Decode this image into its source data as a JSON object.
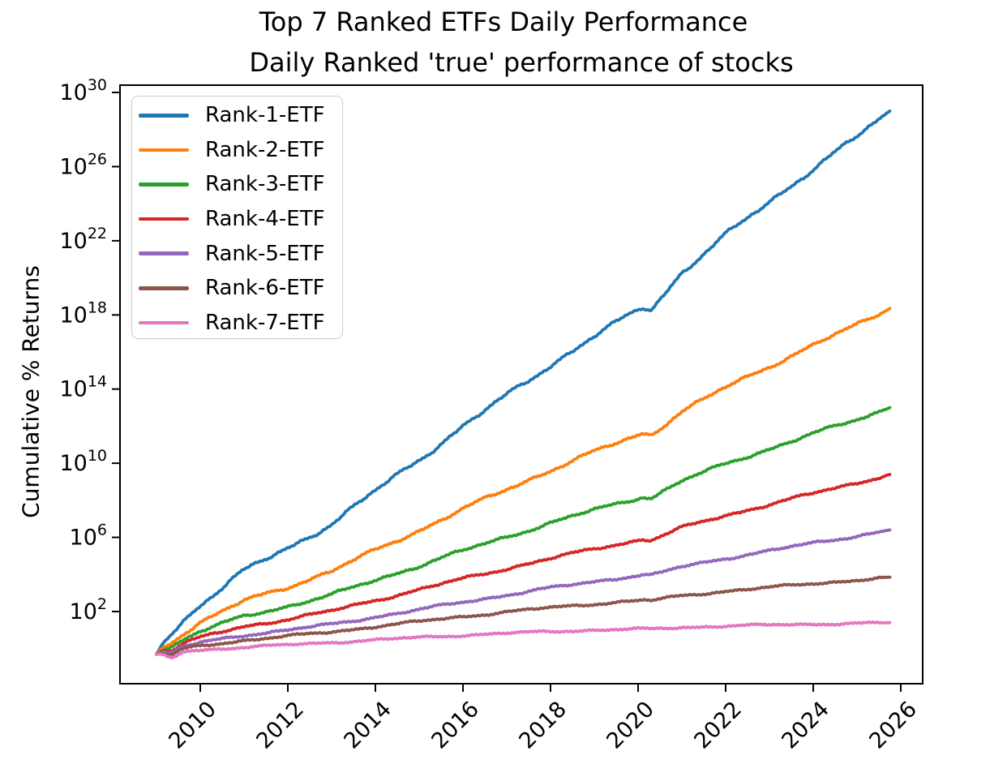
{
  "figure": {
    "suptitle": "Top 7 Ranked ETFs Daily Performance",
    "axes_title": "Daily Ranked 'true' performance of stocks",
    "ylabel": "Cumulative % Returns"
  },
  "chart_data": {
    "type": "line",
    "title": "Top 7 Ranked ETFs Daily Performance",
    "subtitle": "Daily Ranked 'true' performance of stocks",
    "xlabel": "",
    "ylabel": "Cumulative % Returns",
    "grid": false,
    "x_axis": {
      "kind": "years",
      "tick_values": [
        2010,
        2012,
        2014,
        2016,
        2018,
        2020,
        2022,
        2024,
        2026
      ],
      "tick_labels": [
        "2010",
        "2012",
        "2014",
        "2016",
        "2018",
        "2020",
        "2022",
        "2024",
        "2026"
      ],
      "tick_rotation_deg": 45,
      "axis_range": [
        2008.17,
        2026.5
      ],
      "data_range": [
        2009.0,
        2025.75
      ]
    },
    "y_axis": {
      "scale": "log10",
      "log_base_label": "10",
      "tick_exponents": [
        2,
        6,
        10,
        14,
        18,
        22,
        26,
        30
      ],
      "axis_range_exponents": [
        -1.9,
        30.4
      ],
      "label": "Cumulative % Returns"
    },
    "legend": {
      "location": "upper left",
      "entries": [
        "Rank-1-ETF",
        "Rank-2-ETF",
        "Rank-3-ETF",
        "Rank-4-ETF",
        "Rank-5-ETF",
        "Rank-6-ETF",
        "Rank-7-ETF"
      ]
    },
    "series": [
      {
        "name": "Rank-1-ETF",
        "color": "#1f77b4",
        "points_year_log10": [
          [
            2009,
            -0.3
          ],
          [
            2009.15,
            0.3
          ],
          [
            2009.5,
            1.2
          ],
          [
            2010,
            2.4
          ],
          [
            2011,
            4.2
          ],
          [
            2012,
            5.4
          ],
          [
            2013,
            6.75
          ],
          [
            2014,
            8.5
          ],
          [
            2015,
            10.2
          ],
          [
            2016,
            12.0
          ],
          [
            2017,
            13.65
          ],
          [
            2018,
            15.3
          ],
          [
            2019,
            16.85
          ],
          [
            2020.1,
            18.4
          ],
          [
            2020.3,
            18.3
          ],
          [
            2021,
            20.3
          ],
          [
            2022,
            22.3
          ],
          [
            2023,
            24.1
          ],
          [
            2024,
            25.9
          ],
          [
            2025,
            27.6
          ],
          [
            2025.75,
            29.0
          ]
        ]
      },
      {
        "name": "Rank-2-ETF",
        "color": "#ff7f0e",
        "points_year_log10": [
          [
            2009,
            -0.3
          ],
          [
            2009.15,
            0.08
          ],
          [
            2009.5,
            0.66
          ],
          [
            2010,
            1.42
          ],
          [
            2011,
            2.57
          ],
          [
            2012,
            3.33
          ],
          [
            2013,
            4.19
          ],
          [
            2014,
            5.3
          ],
          [
            2015,
            6.38
          ],
          [
            2016,
            7.53
          ],
          [
            2017,
            8.58
          ],
          [
            2018,
            9.63
          ],
          [
            2019,
            10.62
          ],
          [
            2020.1,
            11.6
          ],
          [
            2020.3,
            11.54
          ],
          [
            2021,
            12.81
          ],
          [
            2022,
            14.08
          ],
          [
            2023,
            15.23
          ],
          [
            2024,
            16.38
          ],
          [
            2025,
            17.46
          ],
          [
            2025.75,
            18.35
          ]
        ]
      },
      {
        "name": "Rank-3-ETF",
        "color": "#2ca02c",
        "points_year_log10": [
          [
            2009,
            -0.3
          ],
          [
            2009.15,
            -0.03
          ],
          [
            2009.5,
            0.38
          ],
          [
            2010,
            0.93
          ],
          [
            2011,
            1.74
          ],
          [
            2012,
            2.29
          ],
          [
            2013,
            2.9
          ],
          [
            2014,
            3.69
          ],
          [
            2015,
            4.47
          ],
          [
            2016,
            5.28
          ],
          [
            2017,
            6.03
          ],
          [
            2018,
            6.78
          ],
          [
            2019,
            7.48
          ],
          [
            2020.1,
            8.19
          ],
          [
            2020.3,
            8.14
          ],
          [
            2021,
            9.05
          ],
          [
            2022,
            9.96
          ],
          [
            2023,
            10.78
          ],
          [
            2024,
            11.59
          ],
          [
            2025,
            12.36
          ],
          [
            2025.75,
            13.0
          ]
        ]
      },
      {
        "name": "Rank-4-ETF",
        "color": "#d62728",
        "points_year_log10": [
          [
            2009,
            -0.3
          ],
          [
            2009.15,
            -0.1
          ],
          [
            2009.5,
            0.2
          ],
          [
            2010,
            0.59
          ],
          [
            2011,
            1.19
          ],
          [
            2012,
            1.59
          ],
          [
            2013,
            2.03
          ],
          [
            2014,
            2.61
          ],
          [
            2015,
            3.18
          ],
          [
            2016,
            3.77
          ],
          [
            2017,
            4.32
          ],
          [
            2018,
            4.86
          ],
          [
            2019,
            5.38
          ],
          [
            2020.1,
            5.89
          ],
          [
            2020.3,
            5.86
          ],
          [
            2021,
            6.52
          ],
          [
            2022,
            7.18
          ],
          [
            2023,
            7.78
          ],
          [
            2024,
            8.37
          ],
          [
            2025,
            8.94
          ],
          [
            2025.75,
            9.4
          ]
        ]
      },
      {
        "name": "Rank-5-ETF",
        "color": "#9467bd",
        "points_year_log10": [
          [
            2009,
            -0.3
          ],
          [
            2009.15,
            -0.16
          ],
          [
            2009.5,
            0.04
          ],
          [
            2010,
            0.32
          ],
          [
            2011,
            0.73
          ],
          [
            2012,
            1.0
          ],
          [
            2013,
            1.31
          ],
          [
            2014,
            1.71
          ],
          [
            2015,
            2.1
          ],
          [
            2016,
            2.51
          ],
          [
            2017,
            2.89
          ],
          [
            2018,
            3.27
          ],
          [
            2019,
            3.62
          ],
          [
            2020.1,
            3.98
          ],
          [
            2020.3,
            3.95
          ],
          [
            2021,
            4.41
          ],
          [
            2022,
            4.87
          ],
          [
            2023,
            5.28
          ],
          [
            2024,
            5.69
          ],
          [
            2025,
            6.08
          ],
          [
            2025.75,
            6.4
          ]
        ]
      },
      {
        "name": "Rank-6-ETF",
        "color": "#8c564b",
        "points_year_log10": [
          [
            2009,
            -0.3
          ],
          [
            2009.15,
            -0.21
          ],
          [
            2009.5,
            -0.06
          ],
          [
            2010,
            0.14
          ],
          [
            2011,
            0.45
          ],
          [
            2012,
            0.67
          ],
          [
            2013,
            0.9
          ],
          [
            2014,
            1.19
          ],
          [
            2015,
            1.46
          ],
          [
            2016,
            1.73
          ],
          [
            2017,
            1.98
          ],
          [
            2018,
            2.21
          ],
          [
            2019,
            2.41
          ],
          [
            2020.1,
            2.61
          ],
          [
            2020.3,
            2.59
          ],
          [
            2021,
            2.85
          ],
          [
            2022,
            3.1
          ],
          [
            2023,
            3.3
          ],
          [
            2024,
            3.51
          ],
          [
            2025,
            3.69
          ],
          [
            2025.75,
            3.85
          ]
        ]
      },
      {
        "name": "Rank-7-ETF",
        "color": "#e377c2",
        "points_year_log10": [
          [
            2009,
            -0.3
          ],
          [
            2009.15,
            -0.26
          ],
          [
            2009.5,
            -0.18
          ],
          [
            2010,
            -0.08
          ],
          [
            2011,
            0.08
          ],
          [
            2012,
            0.2
          ],
          [
            2013,
            0.33
          ],
          [
            2014,
            0.47
          ],
          [
            2015,
            0.6
          ],
          [
            2016,
            0.72
          ],
          [
            2017,
            0.83
          ],
          [
            2018,
            0.92
          ],
          [
            2019,
            1.0
          ],
          [
            2020.1,
            1.06
          ],
          [
            2020.3,
            1.05
          ],
          [
            2021,
            1.14
          ],
          [
            2022,
            1.22
          ],
          [
            2023,
            1.27
          ],
          [
            2024,
            1.32
          ],
          [
            2025,
            1.36
          ],
          [
            2025.75,
            1.4
          ]
        ]
      }
    ]
  }
}
